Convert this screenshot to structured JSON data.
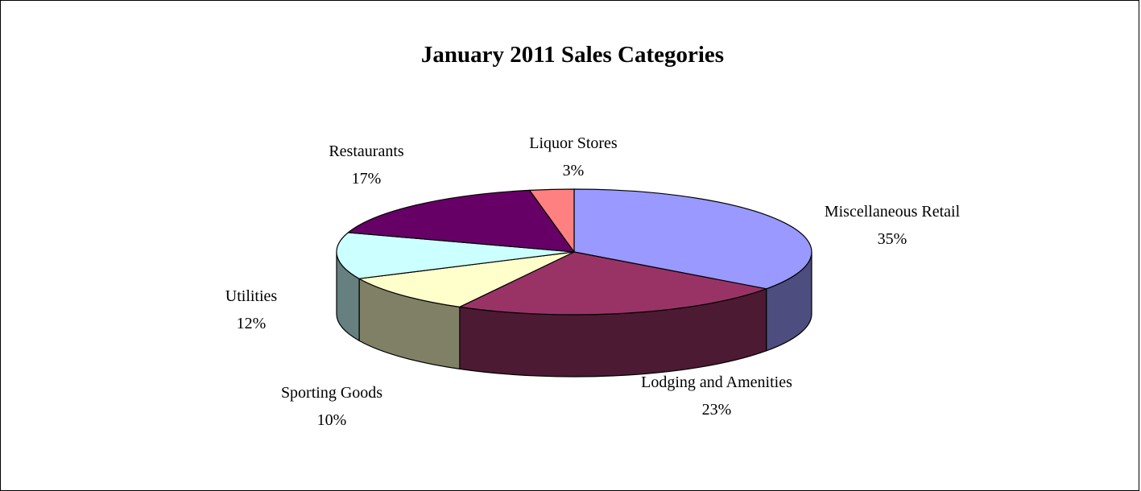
{
  "chart_data": {
    "type": "pie",
    "style": "3d",
    "title": "January 2011 Sales Categories",
    "slices": [
      {
        "name": "Miscellaneous Retail",
        "percent_label": "35%",
        "value": 35,
        "color": "#9999ff",
        "side_color": "#4d4d80"
      },
      {
        "name": "Lodging and Amenities",
        "percent_label": "23%",
        "value": 23,
        "color": "#993366",
        "side_color": "#4d1a33"
      },
      {
        "name": "Sporting Goods",
        "percent_label": "10%",
        "value": 10,
        "color": "#ffffcc",
        "side_color": "#808066"
      },
      {
        "name": "Utilities",
        "percent_label": "12%",
        "value": 12,
        "color": "#ccffff",
        "side_color": "#668080"
      },
      {
        "name": "Restaurants",
        "percent_label": "17%",
        "value": 17,
        "color": "#660066",
        "side_color": "#330033"
      },
      {
        "name": "Liquor Stores",
        "percent_label": "3%",
        "value": 3,
        "color": "#ff8080",
        "side_color": "#804040"
      }
    ]
  }
}
